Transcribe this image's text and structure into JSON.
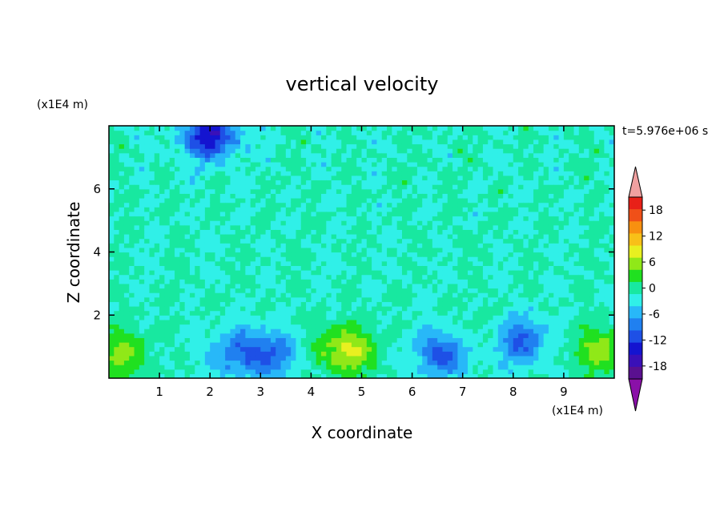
{
  "chart_data": {
    "type": "heatmap",
    "title": "vertical velocity",
    "xlabel": "X coordinate",
    "ylabel": "Z coordinate",
    "x_unit": "(x1E4 m)",
    "z_unit": "(x1E4 m)",
    "time_label": "t=5.976e+06 s",
    "xlim": [
      0,
      10
    ],
    "ylim": [
      0,
      8
    ],
    "x_ticks": [
      "1",
      "2",
      "3",
      "4",
      "5",
      "6",
      "7",
      "8",
      "9"
    ],
    "y_ticks": [
      "2",
      "4",
      "6"
    ],
    "colorbar": {
      "levels": [
        -21,
        -18,
        -15,
        -12,
        -9,
        -6,
        -3,
        0,
        3,
        6,
        9,
        12,
        15,
        18,
        21
      ],
      "tick_labels": [
        "18",
        "12",
        "6",
        "0",
        "-6",
        "-12",
        "-18"
      ],
      "tick_values": [
        18,
        12,
        6,
        0,
        -6,
        -12,
        -18
      ],
      "colors": [
        "#5a1090",
        "#3a10b8",
        "#1414d0",
        "#1e50e6",
        "#2080f0",
        "#28b8f8",
        "#30f0e8",
        "#18e8a0",
        "#20e020",
        "#90e818",
        "#e8f020",
        "#f8c018",
        "#f89010",
        "#f05018",
        "#e82018"
      ],
      "under_color": "#8a10a8",
      "over_color": "#f0a0a0"
    },
    "features": [
      {
        "kind": "updraft",
        "x": 0.2,
        "z": 0.8,
        "peak": 7
      },
      {
        "kind": "downdraft",
        "x": 2.5,
        "z": 0.8,
        "peak": -7
      },
      {
        "kind": "downdraft",
        "x": 3.2,
        "z": 0.8,
        "peak": -8
      },
      {
        "kind": "updraft",
        "x": 4.7,
        "z": 0.9,
        "peak": 10
      },
      {
        "kind": "downdraft",
        "x": 6.6,
        "z": 0.8,
        "peak": -10
      },
      {
        "kind": "downdraft",
        "x": 8.1,
        "z": 1.2,
        "peak": -10
      },
      {
        "kind": "updraft",
        "x": 7.4,
        "z": 1.3,
        "peak": 3
      },
      {
        "kind": "updraft",
        "x": 9.7,
        "z": 0.9,
        "peak": 7
      },
      {
        "kind": "downdraft",
        "x": 2.0,
        "z": 7.7,
        "peak": -14
      }
    ]
  }
}
